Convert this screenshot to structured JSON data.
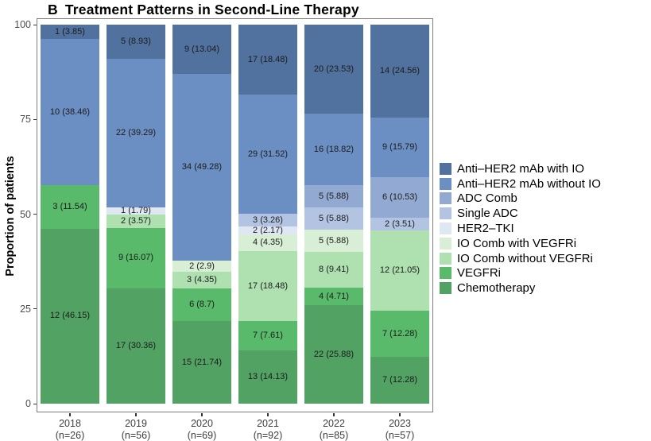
{
  "title": {
    "panel_label": "B",
    "text": "Treatment Patterns in Second-Line Therapy"
  },
  "chart_data": {
    "type": "bar",
    "stacked": true,
    "percent_scale": true,
    "grid": false,
    "legend_position": "right",
    "title": "B Treatment Patterns in Second-Line Therapy",
    "xlabel": "",
    "ylabel": "Proportion of patients",
    "ylim": [
      0,
      100
    ],
    "yticks": [
      0,
      25,
      50,
      75,
      100
    ],
    "categories": [
      "2018 (n=26)",
      "2019 (n=56)",
      "2020 (n=69)",
      "2021 (n=92)",
      "2022 (n=85)",
      "2023 (n=57)"
    ],
    "categories_detail": [
      {
        "year": "2018",
        "n": "(n=26)"
      },
      {
        "year": "2019",
        "n": "(n=56)"
      },
      {
        "year": "2020",
        "n": "(n=69)"
      },
      {
        "year": "2021",
        "n": "(n=92)"
      },
      {
        "year": "2022",
        "n": "(n=85)"
      },
      {
        "year": "2023",
        "n": "(n=57)"
      }
    ],
    "series": [
      {
        "name": "Anti–HER2 mAb with IO",
        "color": "#51719f",
        "counts": [
          1,
          5,
          9,
          17,
          20,
          14
        ],
        "percents": [
          3.85,
          8.93,
          13.04,
          18.48,
          23.53,
          24.56
        ],
        "labels": [
          "1 (3.85)",
          "5 (8.93)",
          "9 (13.04)",
          "17 (18.48)",
          "20 (23.53)",
          "14 (24.56)"
        ]
      },
      {
        "name": "Anti–HER2 mAb without IO",
        "color": "#6b8fc3",
        "counts": [
          10,
          22,
          34,
          29,
          16,
          9
        ],
        "percents": [
          38.46,
          39.29,
          49.28,
          31.52,
          18.82,
          15.79
        ],
        "labels": [
          "10 (38.46)",
          "22 (39.29)",
          "34 (49.28)",
          "29 (31.52)",
          "16 (18.82)",
          "9 (15.79)"
        ]
      },
      {
        "name": "ADC Comb",
        "color": "#92a9d1",
        "counts": [
          null,
          null,
          null,
          null,
          5,
          6
        ],
        "percents": [
          0,
          0,
          0,
          0,
          5.88,
          10.53
        ],
        "labels": [
          null,
          null,
          null,
          null,
          "5 (5.88)",
          "6 (10.53)"
        ]
      },
      {
        "name": "Single ADC",
        "color": "#b2c4e2",
        "counts": [
          null,
          null,
          null,
          3,
          5,
          2
        ],
        "percents": [
          0,
          0,
          0,
          3.26,
          5.88,
          3.51
        ],
        "labels": [
          null,
          null,
          null,
          "3 (3.26)",
          "5 (5.88)",
          "2 (3.51)"
        ]
      },
      {
        "name": "HER2–TKI",
        "color": "#dfe7f3",
        "counts": [
          null,
          1,
          null,
          2,
          null,
          null
        ],
        "percents": [
          0,
          1.79,
          0,
          2.17,
          0,
          0
        ],
        "labels": [
          null,
          "1 (1.79)",
          null,
          "2 (2.17)",
          null,
          null
        ]
      },
      {
        "name": "IO Comb with VEGFRi",
        "color": "#d8efd6",
        "counts": [
          null,
          null,
          2,
          4,
          5,
          null
        ],
        "percents": [
          0,
          0,
          2.9,
          4.35,
          5.88,
          0
        ],
        "labels": [
          null,
          null,
          "2 (2.9)",
          "4 (4.35)",
          "5 (5.88)",
          null
        ]
      },
      {
        "name": "IO Comb without VEGFRi",
        "color": "#aee0b0",
        "counts": [
          null,
          2,
          3,
          17,
          8,
          12
        ],
        "percents": [
          0,
          3.57,
          4.35,
          18.48,
          9.41,
          21.05
        ],
        "labels": [
          null,
          "2 (3.57)",
          "3 (4.35)",
          "17 (18.48)",
          "8 (9.41)",
          "12 (21.05)"
        ]
      },
      {
        "name": "VEGFRi",
        "color": "#58ba6a",
        "counts": [
          3,
          9,
          6,
          7,
          4,
          7
        ],
        "percents": [
          11.54,
          16.07,
          8.7,
          7.61,
          4.71,
          12.28
        ],
        "labels": [
          "3 (11.54)",
          "9 (16.07)",
          "6 (8.7)",
          "7 (7.61)",
          "4 (4.71)",
          "7 (12.28)"
        ]
      },
      {
        "name": "Chemotherapy",
        "color": "#52a263",
        "counts": [
          12,
          17,
          15,
          13,
          22,
          7
        ],
        "percents": [
          46.15,
          30.36,
          21.74,
          14.13,
          25.88,
          12.28
        ],
        "labels": [
          "12 (46.15)",
          "17 (30.36)",
          "15 (21.74)",
          "13 (14.13)",
          "22 (25.88)",
          "7 (12.28)"
        ]
      }
    ]
  }
}
